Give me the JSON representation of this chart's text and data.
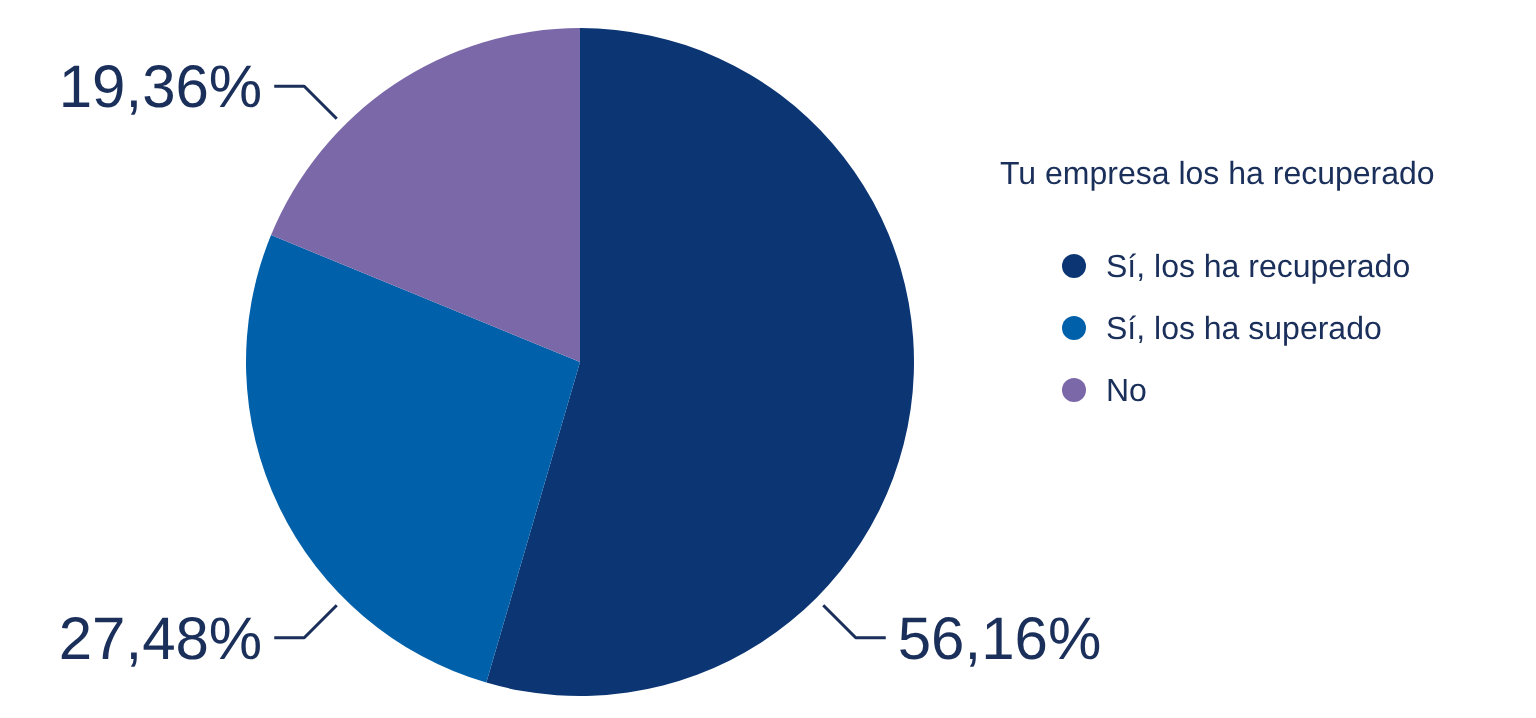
{
  "chart_data": {
    "type": "pie",
    "legend_title": "Tu empresa los ha recuperado",
    "categories": [
      "Sí, los ha recuperado",
      "Sí, los ha superado",
      "No"
    ],
    "values": [
      56.16,
      27.48,
      19.36
    ],
    "colors": [
      "#0c3573",
      "#0060a9",
      "#7b68a8"
    ],
    "value_labels": [
      "56,16%",
      "27,48%",
      "19,36%"
    ],
    "legend": "right"
  }
}
